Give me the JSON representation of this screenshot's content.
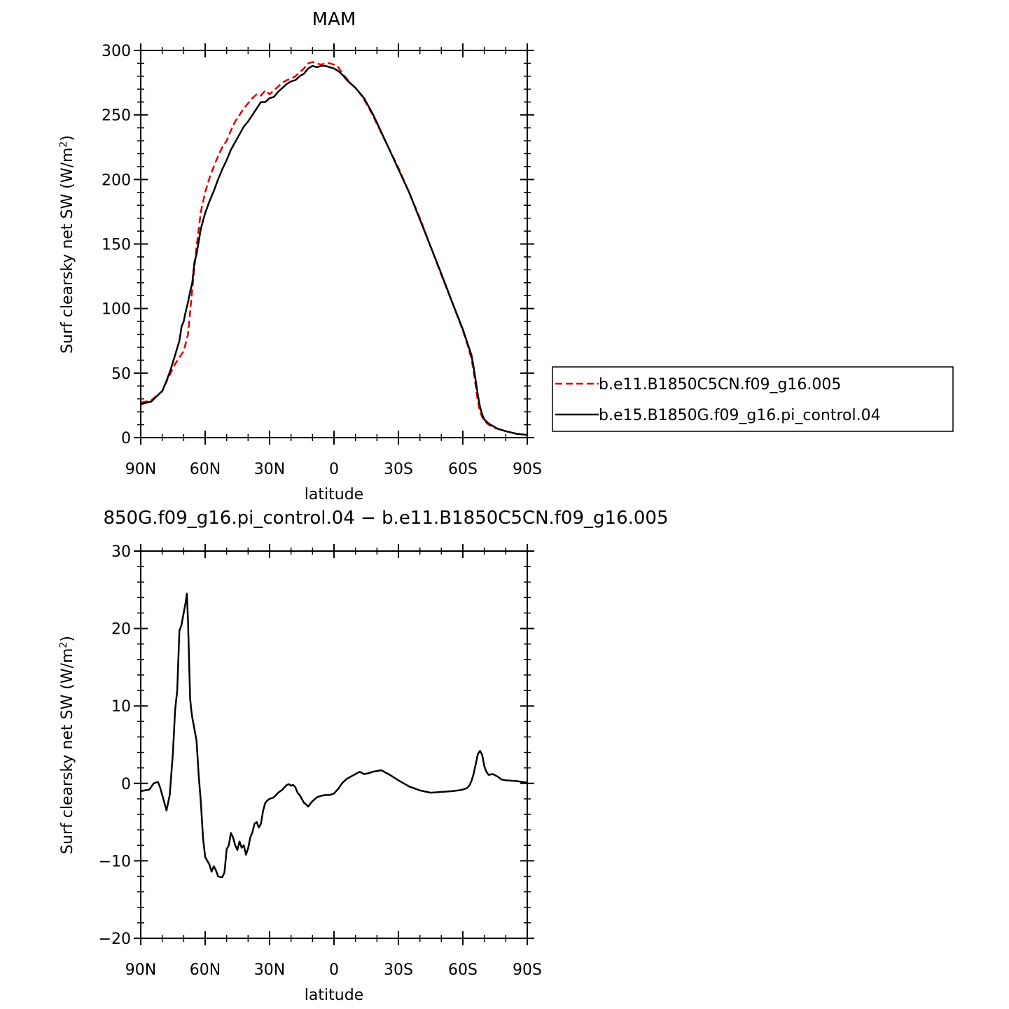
{
  "chart_data": [
    {
      "type": "line",
      "title": "MAM",
      "xlabel": "latitude",
      "ylabel": "Surf clearsky net SW (W/m",
      "ylabel_sup": "2",
      "ylabel_close": ")",
      "xlim": [
        -90,
        90
      ],
      "ylim": [
        0,
        300
      ],
      "x_ticks": [
        -90,
        -60,
        -30,
        0,
        30,
        60,
        90
      ],
      "x_tick_labels": [
        "90N",
        "60N",
        "30N",
        "0",
        "30S",
        "60S",
        "90S"
      ],
      "y_ticks": [
        0,
        50,
        100,
        150,
        200,
        250,
        300
      ],
      "y_tick_labels": [
        "0",
        "50",
        "100",
        "150",
        "200",
        "250",
        "300"
      ],
      "legend_position": "right",
      "series": [
        {
          "name": "b.e11.B1850C5CN.f09_g16.005",
          "color": "#e00000",
          "dash": "dashed",
          "x": [
            -90,
            -85,
            -80,
            -77,
            -74,
            -72,
            -70,
            -68,
            -66,
            -64,
            -62,
            -60,
            -58,
            -56,
            -54,
            -52,
            -50,
            -48,
            -46,
            -44,
            -42,
            -40,
            -38,
            -36,
            -34,
            -32,
            -30,
            -28,
            -26,
            -24,
            -22,
            -20,
            -18,
            -16,
            -14,
            -12,
            -10,
            -8,
            -6,
            -4,
            -2,
            0,
            2,
            4,
            6,
            8,
            10,
            12,
            14,
            16,
            18,
            20,
            25,
            30,
            35,
            40,
            45,
            50,
            55,
            60,
            62,
            64,
            65,
            66,
            67,
            68,
            69,
            70,
            72,
            74,
            76,
            80,
            85,
            90
          ],
          "y": [
            27,
            29,
            36,
            47,
            57,
            62,
            67,
            80,
            115,
            148,
            175,
            190,
            201,
            210,
            218,
            225,
            230,
            238,
            245,
            250,
            255,
            259,
            263,
            266,
            265,
            269,
            266,
            269,
            272,
            275,
            277,
            278,
            280,
            283,
            286,
            290,
            291,
            290,
            289,
            290,
            290,
            289,
            287,
            282,
            278,
            274,
            271,
            267,
            262,
            256,
            250,
            243,
            226,
            209,
            190,
            170,
            148,
            126,
            105,
            83,
            73,
            61,
            52,
            40,
            28,
            20,
            16,
            13,
            10,
            8,
            7,
            5,
            3,
            2
          ]
        },
        {
          "name": "b.e15.B1850G.f09_g16.pi_control.04",
          "color": "#000000",
          "dash": "solid",
          "x": [
            -90,
            -85,
            -82,
            -80,
            -78,
            -76,
            -74,
            -72,
            -71,
            -70,
            -69,
            -68,
            -67,
            -66,
            -65,
            -64,
            -63,
            -62,
            -60,
            -58,
            -56,
            -54,
            -52,
            -50,
            -48,
            -46,
            -44,
            -42,
            -40,
            -38,
            -36,
            -34,
            -32,
            -30,
            -28,
            -26,
            -24,
            -22,
            -20,
            -18,
            -16,
            -14,
            -12,
            -10,
            -8,
            -6,
            -4,
            -2,
            0,
            2,
            4,
            6,
            8,
            10,
            12,
            14,
            16,
            18,
            20,
            25,
            30,
            35,
            40,
            45,
            50,
            55,
            60,
            62,
            64,
            65,
            66,
            67,
            68,
            69,
            70,
            72,
            74,
            76,
            80,
            85,
            90
          ],
          "y": [
            26,
            28,
            33,
            36,
            44,
            53,
            64,
            75,
            86,
            90,
            98,
            105,
            113,
            120,
            136,
            142,
            152,
            162,
            174,
            183,
            191,
            200,
            208,
            215,
            223,
            229,
            235,
            241,
            245,
            250,
            255,
            260,
            260,
            263,
            264,
            268,
            271,
            274,
            276,
            277,
            280,
            282,
            286,
            288,
            287,
            288,
            288,
            287,
            286,
            284,
            281,
            277,
            274,
            271,
            267,
            263,
            257,
            251,
            244,
            226,
            208,
            190,
            169,
            148,
            127,
            105,
            84,
            74,
            64,
            55,
            44,
            33,
            24,
            18,
            14,
            11,
            9,
            7,
            5,
            3,
            2
          ]
        }
      ]
    },
    {
      "type": "line",
      "title": "850G.f09_g16.pi_control.04 − b.e11.B1850C5CN.f09_g16.005",
      "xlabel": "latitude",
      "ylabel": "Surf clearsky net SW (W/m",
      "ylabel_sup": "2",
      "ylabel_close": ")",
      "xlim": [
        -90,
        90
      ],
      "ylim": [
        -20,
        30
      ],
      "x_ticks": [
        -90,
        -60,
        -30,
        0,
        30,
        60,
        90
      ],
      "x_tick_labels": [
        "90N",
        "60N",
        "30N",
        "0",
        "30S",
        "60S",
        "90S"
      ],
      "y_ticks": [
        -20,
        -10,
        0,
        10,
        20,
        30
      ],
      "y_tick_labels": [
        "−20",
        "−10",
        "0",
        "10",
        "20",
        "30"
      ],
      "series": [
        {
          "color": "#000000",
          "dash": "solid",
          "x": [
            -90,
            -86,
            -84,
            -82,
            -81,
            -80,
            -78,
            -76.5,
            -75,
            -74,
            -73,
            -72,
            -71,
            -70,
            -69,
            -68.5,
            -68,
            -67.5,
            -67,
            -66.5,
            -66,
            -65,
            -64,
            -63,
            -62,
            -61,
            -60,
            -59,
            -58,
            -57,
            -56,
            -55,
            -54,
            -53,
            -52,
            -51,
            -50,
            -49,
            -48,
            -47,
            -46,
            -45,
            -44,
            -43,
            -42,
            -41,
            -40,
            -39,
            -38,
            -37,
            -36,
            -35,
            -34,
            -33,
            -32,
            -31,
            -30,
            -28,
            -26,
            -24,
            -22,
            -21,
            -20,
            -19,
            -18,
            -17,
            -16,
            -15,
            -14,
            -13,
            -12,
            -11,
            -10,
            -8,
            -6,
            -4,
            -2,
            0,
            2,
            4,
            6,
            8,
            10,
            12,
            14,
            16,
            18,
            20,
            22,
            24,
            26,
            30,
            35,
            40,
            45,
            50,
            55,
            58,
            60,
            62,
            63,
            64,
            65,
            66,
            67,
            68,
            69,
            70,
            71,
            72,
            74,
            76,
            78,
            80,
            85,
            90
          ],
          "y": [
            -1,
            -0.8,
            0,
            0.2,
            -0.5,
            -1.5,
            -3.5,
            -1.5,
            4,
            9.5,
            12,
            19.7,
            20.5,
            22,
            23.5,
            24.5,
            21,
            16,
            11,
            9.5,
            8.5,
            7,
            5.5,
            1,
            -2.5,
            -7,
            -9.5,
            -10,
            -10.5,
            -11.4,
            -10.7,
            -11.2,
            -12,
            -12.1,
            -12.1,
            -11.5,
            -8.5,
            -8,
            -6.4,
            -7,
            -8,
            -8.6,
            -7.5,
            -8.3,
            -8,
            -9.2,
            -8.4,
            -7,
            -6.3,
            -5.2,
            -5,
            -5.7,
            -5.2,
            -3.5,
            -2.5,
            -2.2,
            -2,
            -1.8,
            -1.2,
            -0.8,
            -0.2,
            -0.1,
            -0.3,
            -0.2,
            -0.5,
            -1.2,
            -1.5,
            -2,
            -2.5,
            -2.7,
            -3,
            -2.6,
            -2.3,
            -1.8,
            -1.6,
            -1.5,
            -1.5,
            -1.3,
            -0.7,
            0.1,
            0.6,
            0.9,
            1.2,
            1.5,
            1.2,
            1.3,
            1.5,
            1.6,
            1.7,
            1.4,
            1.1,
            0.4,
            -0.4,
            -0.9,
            -1.2,
            -1.1,
            -1,
            -0.9,
            -0.8,
            -0.6,
            -0.3,
            0.3,
            1.2,
            2.5,
            3.8,
            4.2,
            3.7,
            2.2,
            1.5,
            1.1,
            1.2,
            0.9,
            0.5,
            0.4,
            0.3,
            0.1
          ]
        }
      ]
    }
  ]
}
